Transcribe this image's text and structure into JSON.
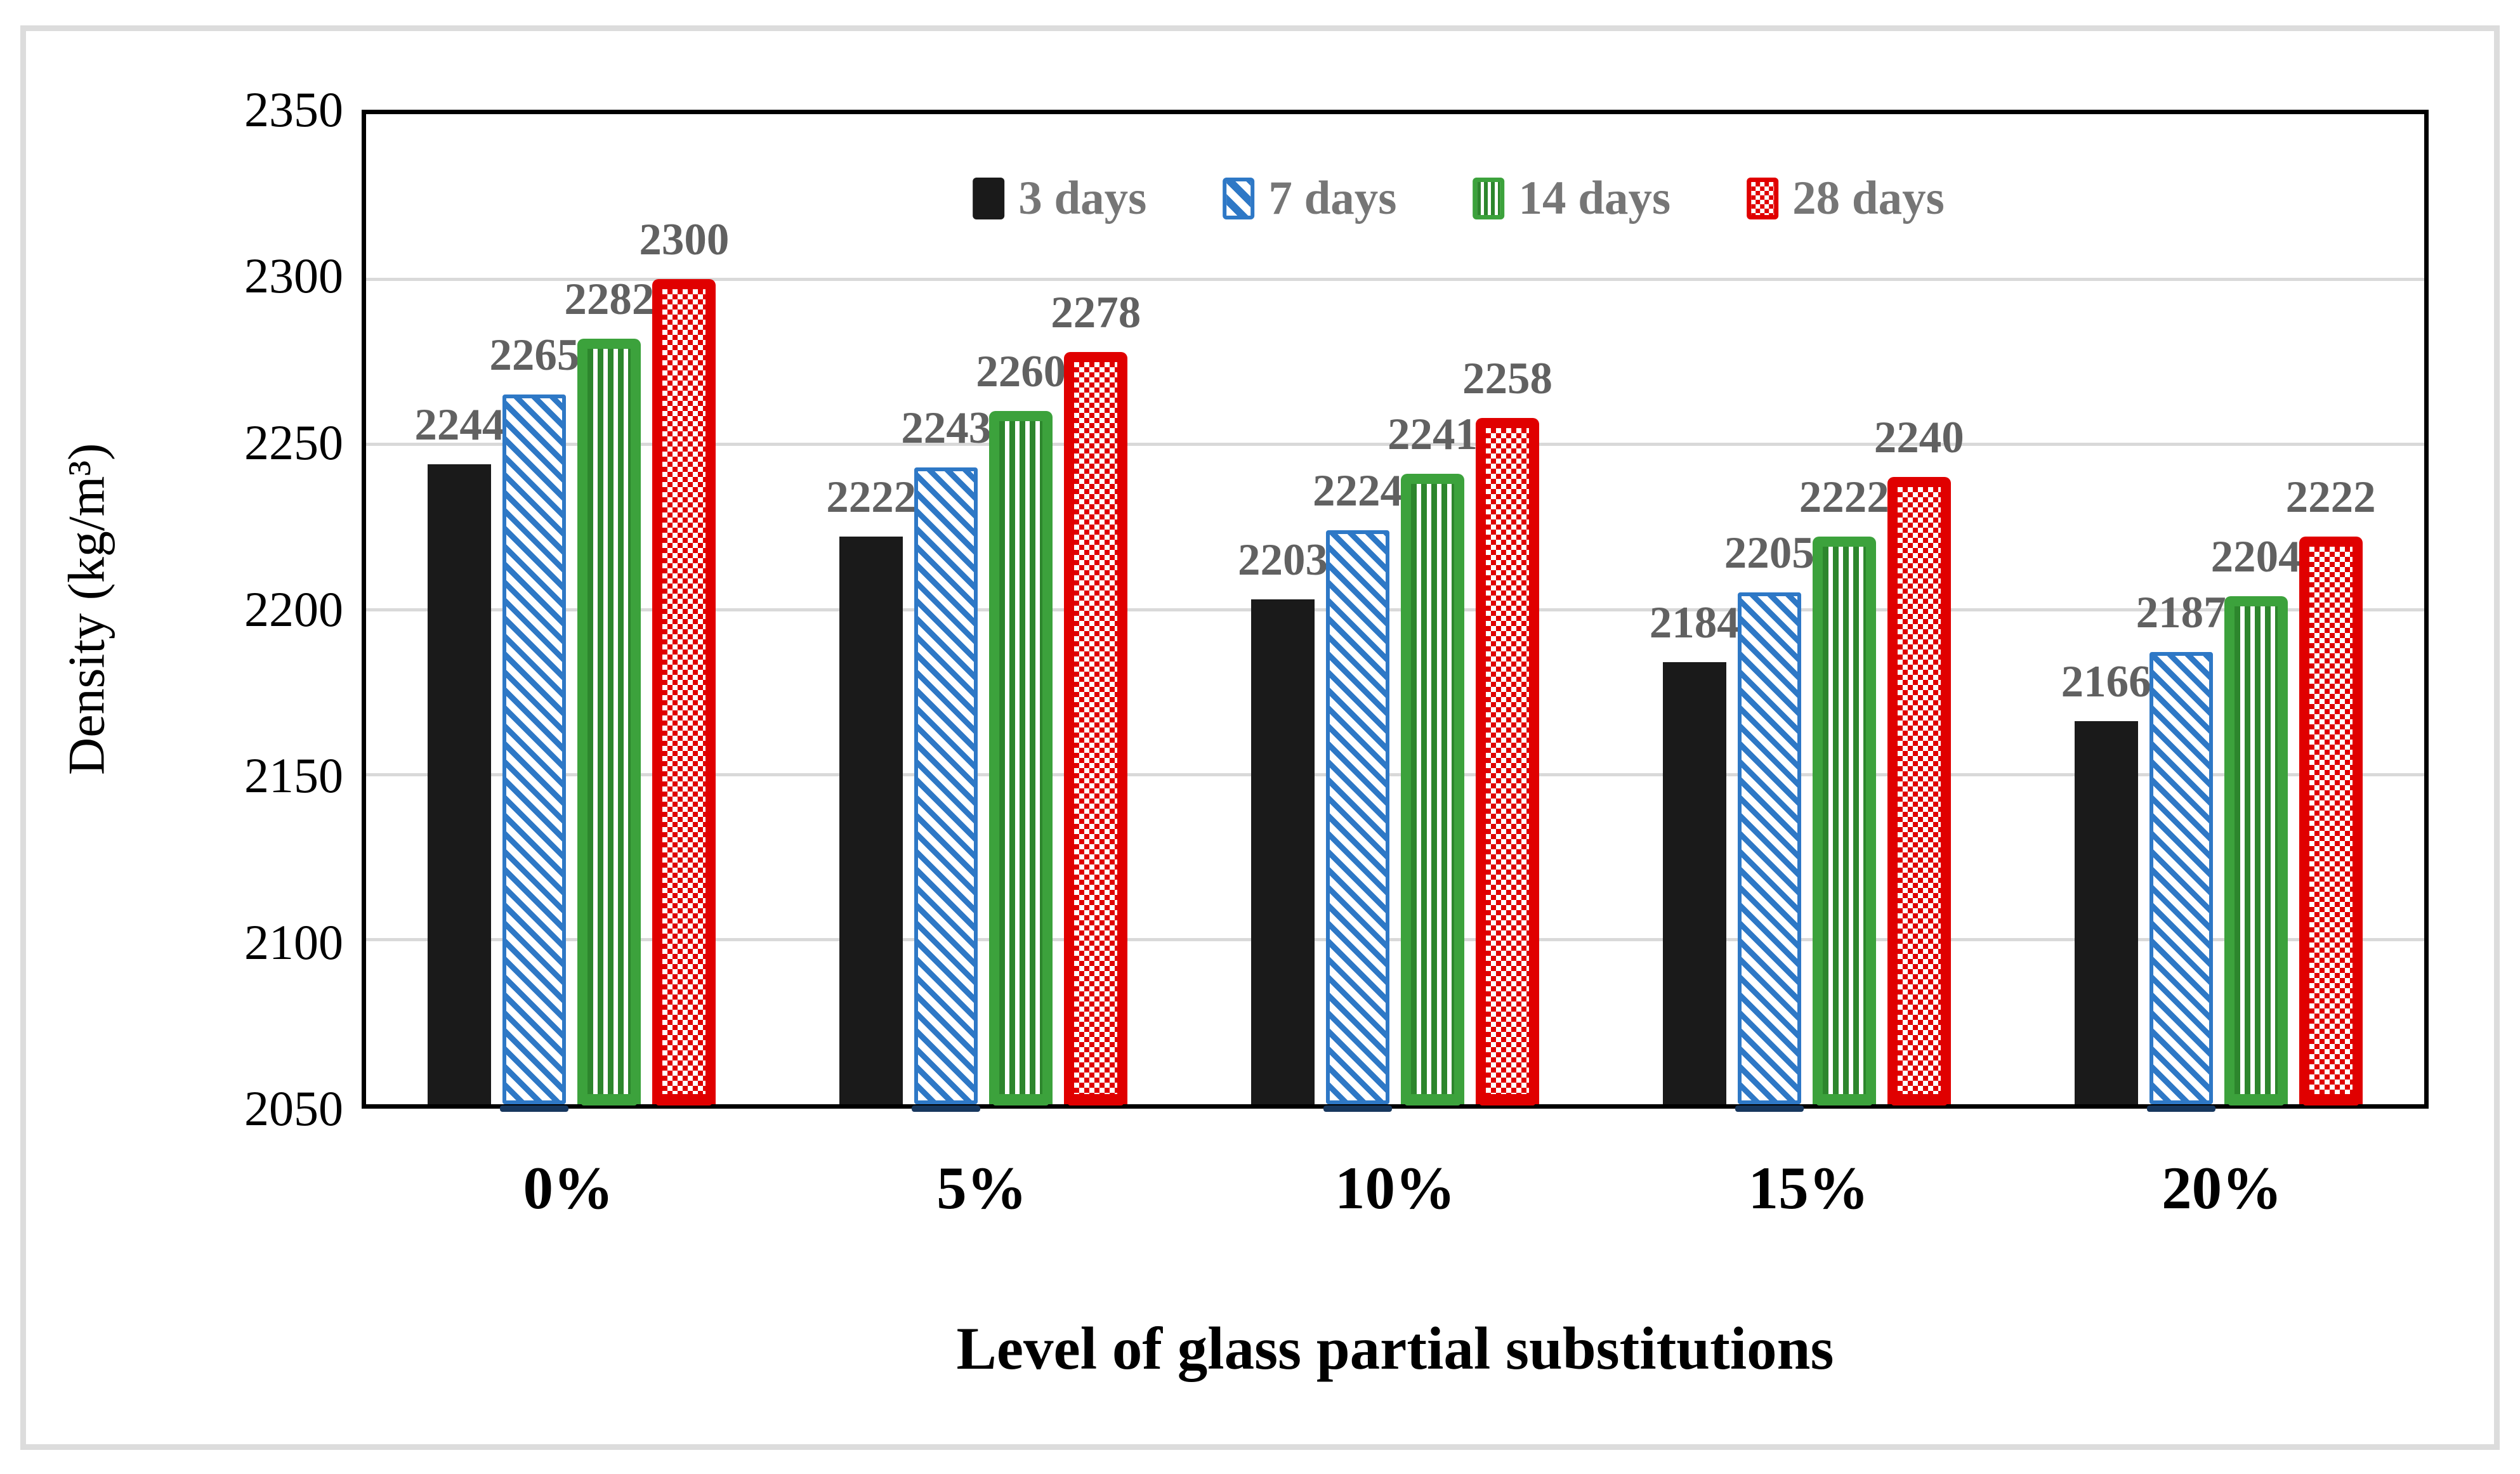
{
  "figure": {
    "background": "#ffffff",
    "border_color": "#dcdcdc"
  },
  "chart_data": {
    "type": "bar",
    "title": "",
    "xlabel": "Level of glass partial substitutions",
    "ylabel": "Density (kg/m³)",
    "categories": [
      "0%",
      "5%",
      "10%",
      "15%",
      "20%"
    ],
    "series": [
      {
        "name": "3 days",
        "pattern": "solid",
        "color": "#1a1a1a",
        "values": [
          2244,
          2222,
          2203,
          2184,
          2166
        ]
      },
      {
        "name": "7 days",
        "pattern": "diagonal-stripes",
        "color": "#2e78c6",
        "under_color": "#17375e",
        "values": [
          2265,
          2243,
          2224,
          2205,
          2187
        ]
      },
      {
        "name": "14 days",
        "pattern": "vertical-stripes",
        "color": "#3ca23c",
        "stripe_color": "#2d862d",
        "values": [
          2282,
          2260,
          2241,
          2222,
          2204
        ]
      },
      {
        "name": "28 days",
        "pattern": "checker",
        "color": "#e00000",
        "values": [
          2300,
          2278,
          2258,
          2240,
          2222
        ]
      }
    ],
    "ylim": [
      2050,
      2350
    ],
    "ytick_step": 50,
    "yticks": [
      2350,
      2300,
      2250,
      2200,
      2150,
      2100,
      2050
    ],
    "grid": "horizontal",
    "grid_color": "#d9d9d9",
    "legend_position": "top-center",
    "data_labels": true,
    "data_label_color": "#616161",
    "legend_text_color": "#767676"
  }
}
